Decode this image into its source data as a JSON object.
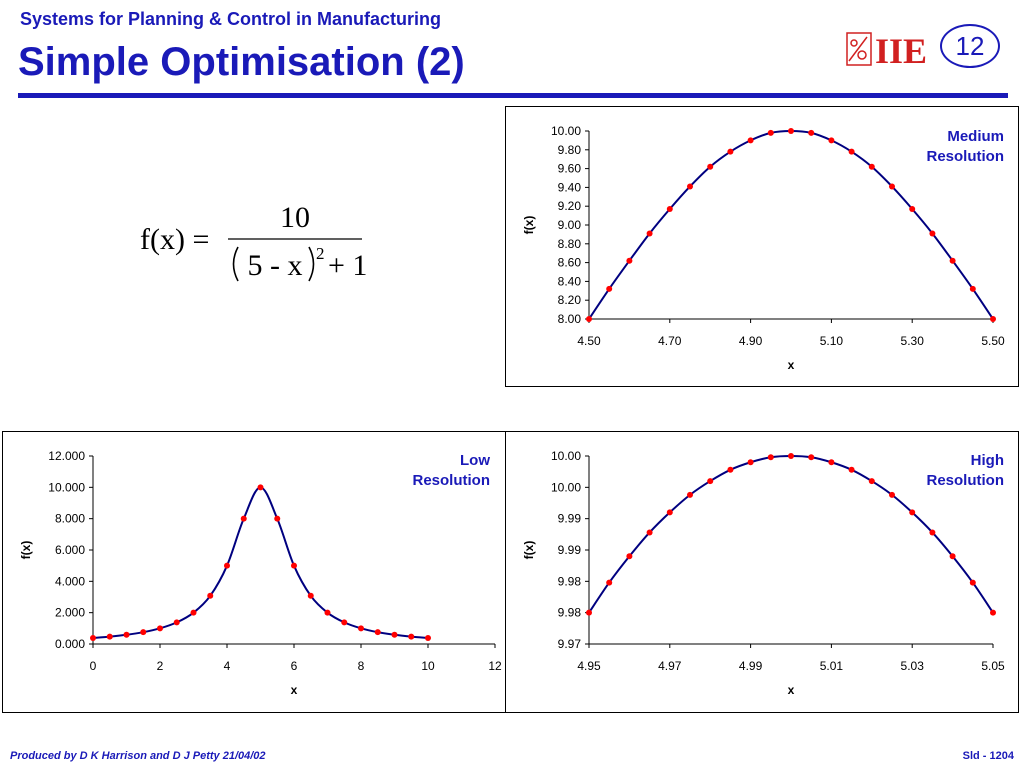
{
  "header": {
    "subtitle": "Systems for Planning & Control in Manufacturing",
    "title": "Simple Optimisation (2)",
    "slide_number": "12",
    "logo_text": "IIE",
    "accent_color": "#1a1ab8"
  },
  "formula": {
    "lhs": "f(x) =",
    "numerator": "10",
    "base": "5 - x",
    "exponent": "2",
    "plus_term": "+ 1"
  },
  "footer": {
    "credit": "Produced by D K Harrison and D J Petty 21/04/02",
    "slide_id": "Sld - 1204"
  },
  "chart_data": [
    {
      "id": "medium",
      "type": "line",
      "title": "",
      "label_lines": [
        "Medium",
        "Resolution"
      ],
      "xlabel": "x",
      "ylabel": "f(x)",
      "xlim": [
        4.5,
        5.5
      ],
      "ylim": [
        8.0,
        10.0
      ],
      "x_ticks": [
        "4.50",
        "4.70",
        "4.90",
        "5.10",
        "5.30",
        "5.50"
      ],
      "y_ticks": [
        "8.00",
        "8.20",
        "8.40",
        "8.60",
        "8.80",
        "9.00",
        "9.20",
        "9.40",
        "9.60",
        "9.80",
        "10.00"
      ],
      "x": [
        4.5,
        4.55,
        4.6,
        4.65,
        4.7,
        4.75,
        4.8,
        4.85,
        4.9,
        4.95,
        5.0,
        5.05,
        5.1,
        5.15,
        5.2,
        5.25,
        5.3,
        5.35,
        5.4,
        5.45,
        5.5
      ],
      "y": [
        8.0,
        8.32,
        8.62,
        8.91,
        9.17,
        9.41,
        9.62,
        9.78,
        9.9,
        9.98,
        10.0,
        9.98,
        9.9,
        9.78,
        9.62,
        9.41,
        9.17,
        8.91,
        8.62,
        8.32,
        8.0
      ],
      "line_color": "#000080",
      "marker_color": "#ff0000"
    },
    {
      "id": "low",
      "type": "line",
      "title": "",
      "label_lines": [
        "Low",
        "Resolution"
      ],
      "xlabel": "x",
      "ylabel": "f(x)",
      "xlim": [
        0,
        12
      ],
      "ylim": [
        0,
        12
      ],
      "x_ticks": [
        "0",
        "2",
        "4",
        "6",
        "8",
        "10",
        "12"
      ],
      "y_ticks": [
        "0.000",
        "2.000",
        "4.000",
        "6.000",
        "8.000",
        "10.000",
        "12.000"
      ],
      "x": [
        0,
        0.5,
        1,
        1.5,
        2,
        2.5,
        3,
        3.5,
        4,
        4.5,
        5,
        5.5,
        6,
        6.5,
        7,
        7.5,
        8,
        8.5,
        9,
        9.5,
        10
      ],
      "y": [
        0.385,
        0.472,
        0.588,
        0.755,
        1.0,
        1.379,
        2.0,
        3.077,
        5.0,
        8.0,
        10.0,
        8.0,
        5.0,
        3.077,
        2.0,
        1.379,
        1.0,
        0.755,
        0.588,
        0.472,
        0.385
      ],
      "line_color": "#000080",
      "marker_color": "#ff0000"
    },
    {
      "id": "high",
      "type": "line",
      "title": "",
      "label_lines": [
        "High",
        "Resolution"
      ],
      "xlabel": "x",
      "ylabel": "f(x)",
      "xlim": [
        4.95,
        5.05
      ],
      "ylim": [
        9.97,
        10.0
      ],
      "x_ticks": [
        "4.95",
        "4.97",
        "4.99",
        "5.01",
        "5.03",
        "5.05"
      ],
      "y_ticks": [
        "9.97",
        "9.98",
        "9.98",
        "9.99",
        "9.99",
        "10.00",
        "10.00"
      ],
      "x": [
        4.95,
        4.955,
        4.96,
        4.965,
        4.97,
        4.975,
        4.98,
        4.985,
        4.99,
        4.995,
        5.0,
        5.005,
        5.01,
        5.015,
        5.02,
        5.025,
        5.03,
        5.035,
        5.04,
        5.045,
        5.05
      ],
      "y": [
        9.975,
        9.9798,
        9.984,
        9.9878,
        9.991,
        9.9938,
        9.996,
        9.9978,
        9.999,
        9.9998,
        10.0,
        9.9998,
        9.999,
        9.9978,
        9.996,
        9.9938,
        9.991,
        9.9878,
        9.984,
        9.9798,
        9.975
      ],
      "line_color": "#000080",
      "marker_color": "#ff0000"
    }
  ]
}
